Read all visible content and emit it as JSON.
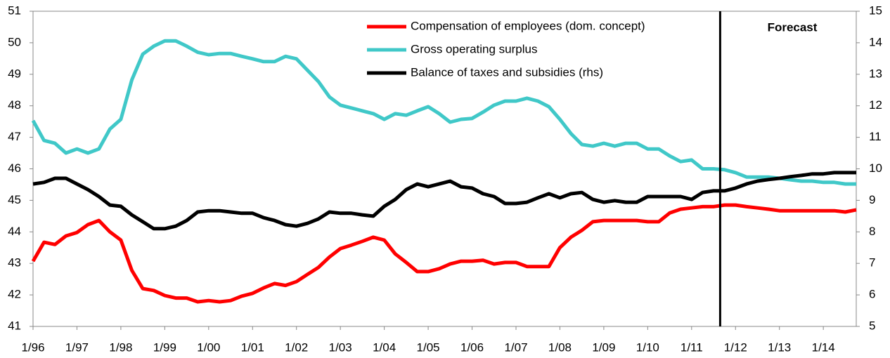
{
  "chart_data": {
    "type": "line",
    "x": [
      1996,
      1996.25,
      1996.5,
      1996.75,
      1997,
      1997.25,
      1997.5,
      1997.75,
      1998,
      1998.25,
      1998.5,
      1998.75,
      1999,
      1999.25,
      1999.5,
      1999.75,
      2000,
      2000.25,
      2000.5,
      2000.75,
      2001,
      2001.25,
      2001.5,
      2001.75,
      2002,
      2002.25,
      2002.5,
      2002.75,
      2003,
      2003.25,
      2003.5,
      2003.75,
      2004,
      2004.25,
      2004.5,
      2004.75,
      2005,
      2005.25,
      2005.5,
      2005.75,
      2006,
      2006.25,
      2006.5,
      2006.75,
      2007,
      2007.25,
      2007.5,
      2007.75,
      2008,
      2008.25,
      2008.5,
      2008.75,
      2009,
      2009.25,
      2009.5,
      2009.75,
      2010,
      2010.25,
      2010.5,
      2010.75,
      2011,
      2011.25,
      2011.5,
      2011.75,
      2012,
      2012.25,
      2012.5,
      2012.75,
      2013,
      2013.25,
      2013.5,
      2013.75,
      2014,
      2014.25,
      2014.5,
      2014.75
    ],
    "xlim": [
      1996,
      2014.75
    ],
    "xticks": [
      {
        "value": 1996,
        "label": "1/96"
      },
      {
        "value": 1997,
        "label": "1/97"
      },
      {
        "value": 1998,
        "label": "1/98"
      },
      {
        "value": 1999,
        "label": "1/99"
      },
      {
        "value": 2000,
        "label": "1/00"
      },
      {
        "value": 2001,
        "label": "1/01"
      },
      {
        "value": 2002,
        "label": "1/02"
      },
      {
        "value": 2003,
        "label": "1/03"
      },
      {
        "value": 2004,
        "label": "1/04"
      },
      {
        "value": 2005,
        "label": "1/05"
      },
      {
        "value": 2006,
        "label": "1/06"
      },
      {
        "value": 2007,
        "label": "1/07"
      },
      {
        "value": 2008,
        "label": "1/08"
      },
      {
        "value": 2009,
        "label": "1/09"
      },
      {
        "value": 2010,
        "label": "1/10"
      },
      {
        "value": 2011,
        "label": "1/11"
      },
      {
        "value": 2012,
        "label": "1/12"
      },
      {
        "value": 2013,
        "label": "1/13"
      },
      {
        "value": 2014,
        "label": "1/14"
      }
    ],
    "ylim": [
      41,
      51
    ],
    "yticks": [
      41,
      42,
      43,
      44,
      45,
      46,
      47,
      48,
      49,
      50,
      51
    ],
    "y2lim": [
      5,
      15
    ],
    "y2ticks": [
      5,
      6,
      7,
      8,
      9,
      10,
      11,
      12,
      13,
      14,
      15
    ],
    "forecast_x": 2011.65,
    "forecast_label": "Forecast",
    "series": [
      {
        "name": "Compensation of employees (dom. concept)",
        "color": "#ff0000",
        "values": [
          43.07,
          43.67,
          43.6,
          43.87,
          43.98,
          44.23,
          44.36,
          44.0,
          43.74,
          42.78,
          42.2,
          42.14,
          41.98,
          41.9,
          41.9,
          41.78,
          41.82,
          41.78,
          41.82,
          41.96,
          42.05,
          42.22,
          42.36,
          42.3,
          42.42,
          42.65,
          42.87,
          43.2,
          43.47,
          43.58,
          43.7,
          43.83,
          43.74,
          43.3,
          43.03,
          42.74,
          42.74,
          42.83,
          42.98,
          43.07,
          43.07,
          43.1,
          42.98,
          43.03,
          43.03,
          42.9,
          42.9,
          42.9,
          43.5,
          43.83,
          44.05,
          44.32,
          44.36,
          44.36,
          44.36,
          44.36,
          44.32,
          44.32,
          44.6,
          44.72,
          44.76,
          44.8,
          44.8,
          44.85,
          44.85,
          44.8,
          44.76,
          44.72,
          44.67,
          44.67,
          44.67,
          44.67,
          44.67,
          44.67,
          44.63,
          44.7
        ]
      },
      {
        "name": "Gross operating surplus",
        "color": "#40c8c8",
        "values": [
          47.53,
          46.9,
          46.81,
          46.5,
          46.63,
          46.5,
          46.63,
          47.26,
          47.57,
          48.82,
          49.64,
          49.89,
          50.06,
          50.06,
          49.89,
          49.7,
          49.62,
          49.66,
          49.66,
          49.57,
          49.49,
          49.4,
          49.4,
          49.57,
          49.49,
          49.13,
          48.77,
          48.28,
          48.02,
          47.93,
          47.84,
          47.75,
          47.57,
          47.75,
          47.7,
          47.84,
          47.97,
          47.75,
          47.48,
          47.57,
          47.6,
          47.8,
          48.02,
          48.15,
          48.15,
          48.24,
          48.15,
          47.97,
          47.57,
          47.12,
          46.77,
          46.72,
          46.81,
          46.72,
          46.81,
          46.81,
          46.63,
          46.63,
          46.41,
          46.23,
          46.28,
          46.0,
          46.0,
          45.97,
          45.88,
          45.74,
          45.74,
          45.74,
          45.7,
          45.65,
          45.61,
          45.61,
          45.57,
          45.57,
          45.52,
          45.52
        ]
      },
      {
        "name": "Balance of taxes and subsidies (rhs)",
        "color": "#000000",
        "axis": "y2",
        "values": [
          9.52,
          9.57,
          9.7,
          9.7,
          9.52,
          9.34,
          9.12,
          8.85,
          8.81,
          8.54,
          8.32,
          8.1,
          8.1,
          8.18,
          8.36,
          8.63,
          8.67,
          8.67,
          8.63,
          8.59,
          8.59,
          8.45,
          8.36,
          8.23,
          8.18,
          8.27,
          8.41,
          8.63,
          8.59,
          8.59,
          8.54,
          8.5,
          8.81,
          9.03,
          9.34,
          9.52,
          9.43,
          9.52,
          9.61,
          9.43,
          9.39,
          9.21,
          9.12,
          8.9,
          8.9,
          8.94,
          9.08,
          9.21,
          9.08,
          9.21,
          9.25,
          9.03,
          8.94,
          8.99,
          8.94,
          8.94,
          9.12,
          9.12,
          9.12,
          9.12,
          9.03,
          9.25,
          9.3,
          9.3,
          9.39,
          9.52,
          9.61,
          9.66,
          9.7,
          9.75,
          9.79,
          9.84,
          9.84,
          9.88,
          9.88,
          9.88
        ]
      }
    ]
  }
}
